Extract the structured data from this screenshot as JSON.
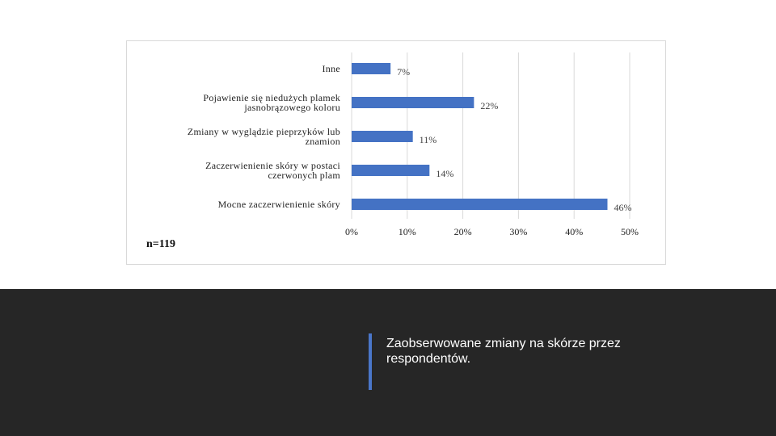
{
  "slide": {
    "caption": "Zaobserwowane zmiany na skórze przez respondentów."
  },
  "chart_note": "n=119",
  "colors": {
    "bar": "#4472c4",
    "grid": "#d9d9d9",
    "footer_bg": "#262626",
    "accent": "#4a76c9"
  },
  "chart_data": {
    "type": "bar",
    "orientation": "horizontal",
    "categories": [
      "Inne",
      "Pojawienie się niedużych plamek jasnobrązowego koloru",
      "Zmiany w wyglądzie pieprzyków lub znamion",
      "Zaczerwienienie skóry w postaci czerwonych plam",
      "Mocne zaczerwienienie skóry"
    ],
    "category_lines": [
      [
        "Inne"
      ],
      [
        "Pojawienie się niedużych plamek",
        "jasnobrązowego koloru"
      ],
      [
        "Zmiany w wyglądzie pieprzyków lub",
        "znamion"
      ],
      [
        "Zaczerwienienie skóry w postaci",
        "czerwonych plam"
      ],
      [
        "Mocne zaczerwienienie skóry"
      ]
    ],
    "values": [
      7,
      22,
      11,
      14,
      46
    ],
    "value_labels": [
      "7%",
      "22%",
      "11%",
      "14%",
      "46%"
    ],
    "xlim": [
      0,
      50
    ],
    "x_ticks": [
      0,
      10,
      20,
      30,
      40,
      50
    ],
    "x_tick_labels": [
      "0%",
      "10%",
      "20%",
      "30%",
      "40%",
      "50%"
    ],
    "grid": true,
    "legend": "none"
  }
}
